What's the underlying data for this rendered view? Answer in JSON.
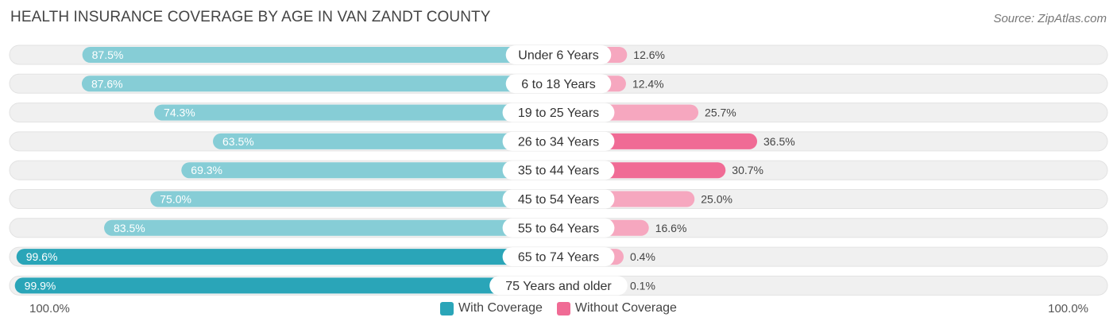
{
  "title": "HEALTH INSURANCE COVERAGE BY AGE IN VAN ZANDT COUNTY",
  "source": "Source: ZipAtlas.com",
  "colors": {
    "with_coverage": "#2aa5b8",
    "with_coverage_light": "#86cdd6",
    "without_coverage": "#f06b95",
    "without_coverage_light": "#f6a7bf",
    "track": "#f0f0f0"
  },
  "axis": {
    "left_label": "100.0%",
    "right_label": "100.0%"
  },
  "legend": {
    "with_label": "With Coverage",
    "without_label": "Without Coverage"
  },
  "chart_data": {
    "type": "bar",
    "orientation": "diverging-horizontal",
    "title": "HEALTH INSURANCE COVERAGE BY AGE IN VAN ZANDT COUNTY",
    "categories": [
      "Under 6 Years",
      "6 to 18 Years",
      "19 to 25 Years",
      "26 to 34 Years",
      "35 to 44 Years",
      "45 to 54 Years",
      "55 to 64 Years",
      "65 to 74 Years",
      "75 Years and older"
    ],
    "series": [
      {
        "name": "With Coverage",
        "values": [
          87.5,
          87.6,
          74.3,
          63.5,
          69.3,
          75.0,
          83.5,
          99.6,
          99.9
        ],
        "labels": [
          "87.5%",
          "87.6%",
          "74.3%",
          "63.5%",
          "69.3%",
          "75.0%",
          "83.5%",
          "99.6%",
          "99.9%"
        ]
      },
      {
        "name": "Without Coverage",
        "values": [
          12.6,
          12.4,
          25.7,
          36.5,
          30.7,
          25.0,
          16.6,
          0.4,
          0.1
        ],
        "labels": [
          "12.6%",
          "12.4%",
          "25.7%",
          "36.5%",
          "30.7%",
          "25.0%",
          "16.6%",
          "0.4%",
          "0.1%"
        ]
      }
    ],
    "xlim": [
      0,
      100
    ],
    "legend_position": "bottom-center"
  }
}
